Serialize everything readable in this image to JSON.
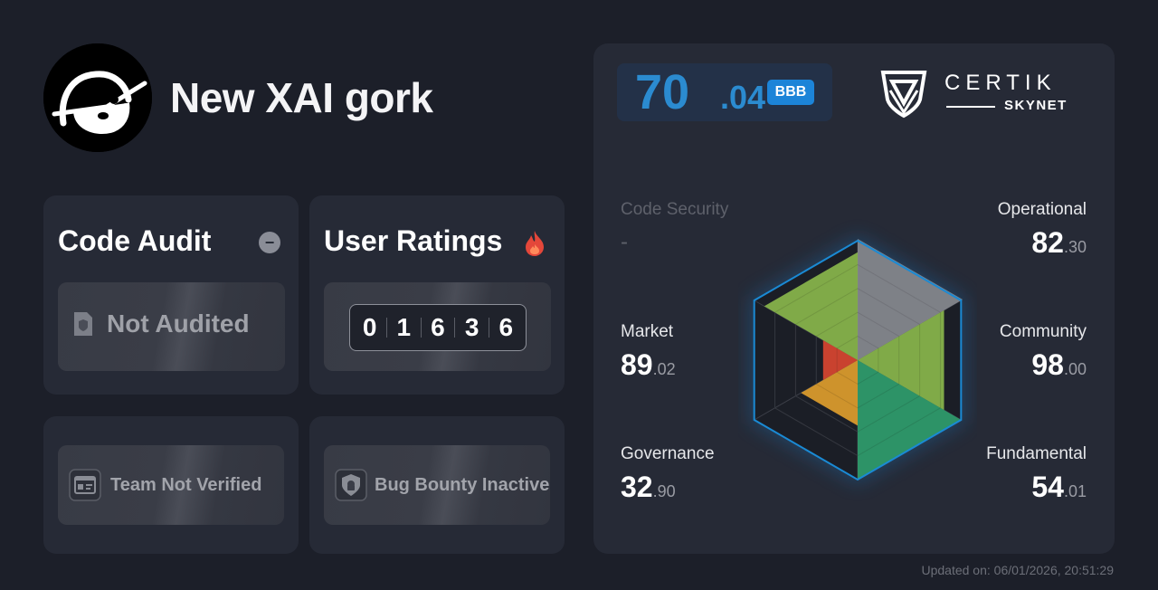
{
  "project": {
    "name": "New XAI gork",
    "avatar_icon": "doodle-face-avatar"
  },
  "code_audit": {
    "title": "Code Audit",
    "status_icon": "minus-icon",
    "status_label": "Not Audited",
    "status_glyph": "document-shield-icon"
  },
  "user_ratings": {
    "title": "User Ratings",
    "hot_icon": "fire-icon",
    "digits": [
      "0",
      "1",
      "6",
      "3",
      "6"
    ]
  },
  "team": {
    "label": "Team Not Verified",
    "icon": "id-card-icon"
  },
  "bug_bounty": {
    "label": "Bug Bounty Inactive",
    "icon": "shield-lock-icon"
  },
  "score": {
    "integer": "70",
    "decimal": ".04",
    "grade": "BBB",
    "accent": "#2b8bd0"
  },
  "brand": {
    "name": "CERTIK",
    "product": "SKYNET",
    "icon": "certik-shield-icon"
  },
  "metrics": {
    "code_security": {
      "label": "Code Security",
      "value": "-"
    },
    "operational": {
      "label": "Operational",
      "int": "82",
      "dec": ".30"
    },
    "community": {
      "label": "Community",
      "int": "98",
      "dec": ".00"
    },
    "market": {
      "label": "Market",
      "int": "89",
      "dec": ".02"
    },
    "governance": {
      "label": "Governance",
      "int": "32",
      "dec": ".90"
    },
    "fundamental": {
      "label": "Fundamental",
      "int": "54",
      "dec": ".01"
    }
  },
  "chart_data": {
    "type": "radar",
    "categories": [
      "Code Security",
      "Operational",
      "Community",
      "Fundamental",
      "Governance",
      "Market"
    ],
    "values": [
      null,
      82.3,
      98.0,
      54.01,
      32.9,
      89.02
    ],
    "ylim": [
      0,
      100
    ],
    "colors": {
      "operational": "#86b24a",
      "community": "#2e9a6a",
      "fundamental": "#d89a2c",
      "governance": "#d3452f",
      "market": "#86b24a",
      "code_security": "#8a8c92",
      "outline": "#1a8ad4"
    }
  },
  "footer": {
    "updated": "Updated on: 06/01/2026, 20:51:29"
  }
}
